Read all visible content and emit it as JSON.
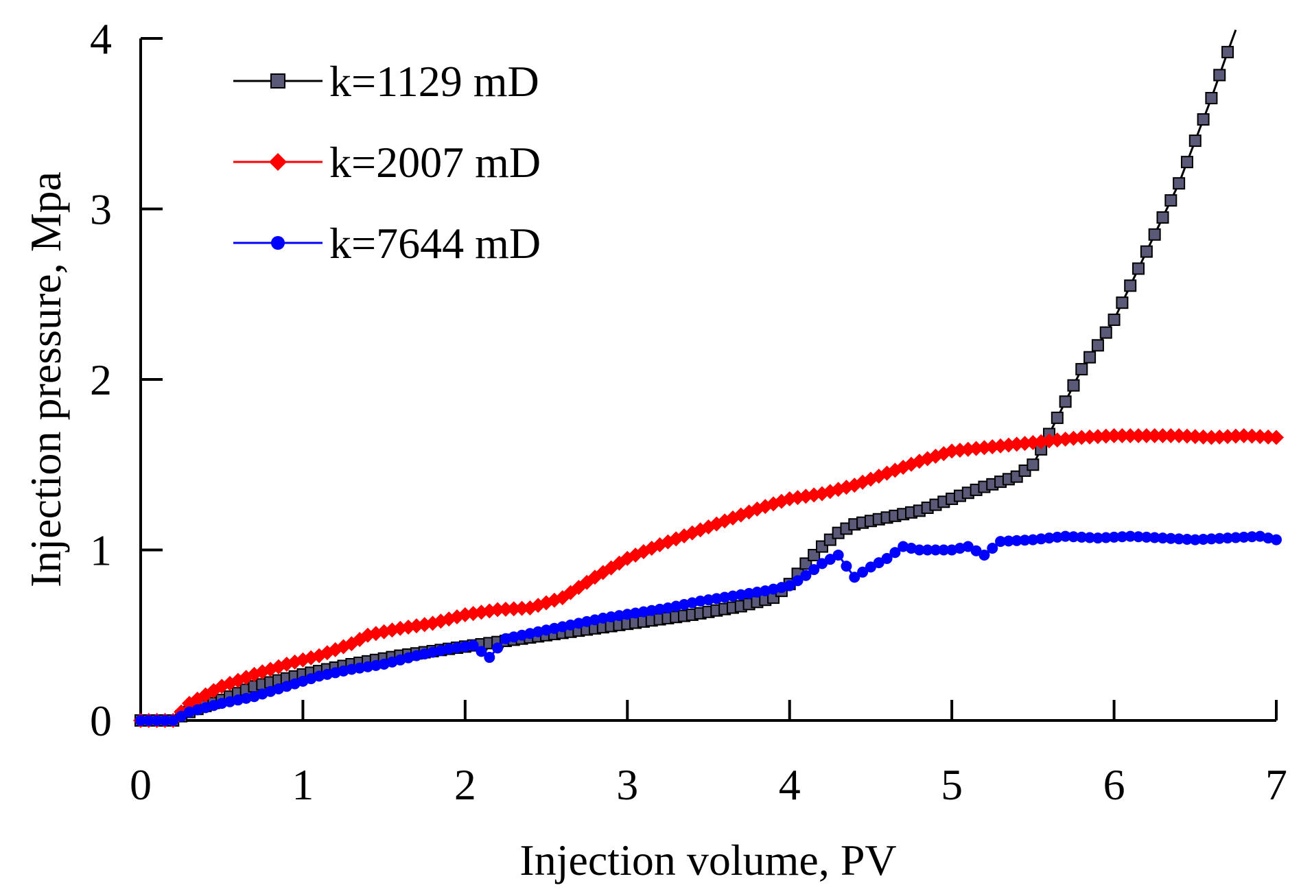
{
  "chart_data": {
    "type": "line",
    "title": "",
    "xlabel": "Injection volume, PV",
    "ylabel": "Injection pressure, Mpa",
    "xlim": [
      0,
      7
    ],
    "ylim": [
      0,
      4
    ],
    "xticks": [
      "0",
      "1",
      "2",
      "3",
      "4",
      "5",
      "6",
      "7"
    ],
    "yticks": [
      "0",
      "1",
      "2",
      "3",
      "4"
    ],
    "legend_position": "top-left",
    "grid": false,
    "series": [
      {
        "name": "k=1129 mD",
        "color": "#000000",
        "marker": "square",
        "marker_color": "#5a5a78",
        "x": [
          0,
          0.2,
          0.3,
          0.5,
          0.7,
          1.0,
          1.3,
          1.6,
          1.9,
          2.2,
          2.5,
          2.8,
          3.1,
          3.4,
          3.7,
          3.9,
          4.0,
          4.1,
          4.2,
          4.3,
          4.4,
          4.5,
          4.6,
          4.8,
          5.0,
          5.2,
          5.4,
          5.5,
          5.6,
          5.7,
          5.8,
          5.9,
          6.0,
          6.1,
          6.2,
          6.3,
          6.4,
          6.5,
          6.6,
          6.7,
          6.75
        ],
        "y": [
          0,
          0,
          0.05,
          0.12,
          0.2,
          0.27,
          0.33,
          0.38,
          0.42,
          0.46,
          0.5,
          0.54,
          0.58,
          0.62,
          0.67,
          0.72,
          0.8,
          0.92,
          1.02,
          1.1,
          1.15,
          1.17,
          1.19,
          1.23,
          1.3,
          1.37,
          1.43,
          1.5,
          1.68,
          1.87,
          2.06,
          2.2,
          2.35,
          2.55,
          2.75,
          2.95,
          3.15,
          3.4,
          3.65,
          3.92,
          4.05
        ]
      },
      {
        "name": "k=2007 mD",
        "color": "#ff0000",
        "marker": "diamond",
        "marker_color": "#ff0000",
        "x": [
          0,
          0.2,
          0.3,
          0.5,
          0.7,
          0.9,
          1.1,
          1.3,
          1.4,
          1.6,
          1.8,
          2.0,
          2.2,
          2.4,
          2.6,
          2.8,
          3.0,
          3.2,
          3.4,
          3.6,
          3.8,
          4.0,
          4.2,
          4.4,
          4.6,
          4.8,
          5.0,
          5.2,
          5.4,
          5.6,
          5.8,
          6.0,
          6.2,
          6.4,
          6.6,
          6.8,
          7.0
        ],
        "y": [
          0,
          0,
          0.1,
          0.2,
          0.27,
          0.33,
          0.38,
          0.45,
          0.5,
          0.54,
          0.57,
          0.62,
          0.65,
          0.66,
          0.72,
          0.84,
          0.95,
          1.03,
          1.1,
          1.17,
          1.24,
          1.3,
          1.33,
          1.38,
          1.45,
          1.52,
          1.58,
          1.6,
          1.62,
          1.64,
          1.66,
          1.67,
          1.67,
          1.67,
          1.66,
          1.67,
          1.66
        ]
      },
      {
        "name": "k=7644 mD",
        "color": "#0000ff",
        "marker": "circle",
        "marker_color": "#0000ff",
        "x": [
          0,
          0.2,
          0.3,
          0.5,
          0.7,
          0.9,
          1.1,
          1.3,
          1.5,
          1.7,
          1.9,
          2.05,
          2.15,
          2.25,
          2.45,
          2.65,
          2.85,
          3.05,
          3.25,
          3.45,
          3.65,
          3.85,
          4.0,
          4.1,
          4.2,
          4.3,
          4.4,
          4.5,
          4.6,
          4.7,
          4.8,
          5.0,
          5.1,
          5.2,
          5.3,
          5.5,
          5.7,
          5.9,
          6.1,
          6.3,
          6.5,
          6.7,
          6.9,
          7.0
        ],
        "y": [
          0,
          0,
          0.05,
          0.1,
          0.14,
          0.2,
          0.26,
          0.3,
          0.33,
          0.38,
          0.42,
          0.44,
          0.37,
          0.48,
          0.52,
          0.56,
          0.6,
          0.63,
          0.66,
          0.7,
          0.73,
          0.76,
          0.79,
          0.85,
          0.92,
          0.97,
          0.84,
          0.9,
          0.95,
          1.02,
          1.0,
          1.0,
          1.02,
          0.97,
          1.05,
          1.06,
          1.08,
          1.07,
          1.08,
          1.07,
          1.06,
          1.07,
          1.08,
          1.06
        ]
      }
    ]
  }
}
